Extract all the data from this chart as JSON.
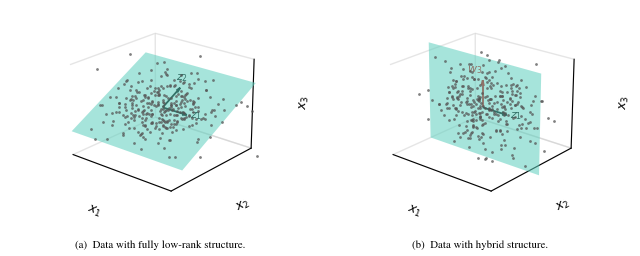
{
  "seed": 42,
  "n_points": 300,
  "plane_color": "#5ecfbe",
  "plane_alpha": 0.55,
  "dot_color": "#555555",
  "dot_size": 4,
  "arrow_color_black": "#000000",
  "arrow_color_red": "#cc0000",
  "caption_a": "(a)  Data with fully low-rank structure.",
  "caption_b": "(b)  Data with hybrid structure.",
  "xlabel": "$x_1$",
  "ylabel": "$x_2$",
  "zlabel": "$x_3$",
  "label_z1": "$z_1$",
  "label_z2": "$z_2$",
  "label_w3": "$w_3$",
  "elev1": 22,
  "azim1": -50,
  "elev2": 22,
  "azim2": -50
}
